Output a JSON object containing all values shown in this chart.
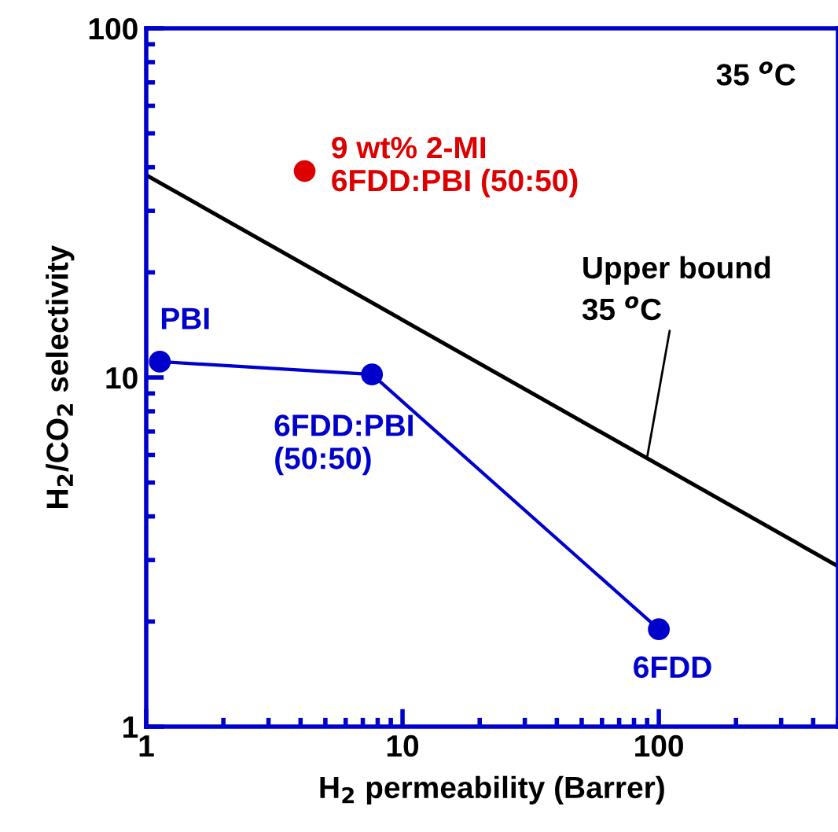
{
  "chart_data": {
    "type": "line",
    "xlabel": "H$_{2}$ permeability (Barrer)",
    "ylabel": "H$_{2}$/CO$_{2}$ selectivity",
    "log": "xy",
    "xlim": [
      1,
      500
    ],
    "ylim": [
      1,
      100
    ],
    "xticks": [
      1,
      10,
      100
    ],
    "yticks": [
      1,
      10,
      100
    ],
    "grid": false,
    "series": [
      {
        "color": "#0000cc",
        "marker": "circle",
        "x": [
          1.13,
          7.6,
          100
        ],
        "values": [
          11.1,
          10.2,
          1.9
        ]
      },
      {
        "type": "scatter",
        "color": "#dd0000",
        "marker": "circle",
        "x": [
          4.15
        ],
        "values": [
          39
        ]
      },
      {
        "color": "#000000",
        "marker": "none",
        "x": [
          1,
          500
        ],
        "values": [
          38,
          2.88
        ]
      }
    ],
    "annotations": [
      "35 $^{o}$C",
      {
        "text": "PBI",
        "x": 1.13,
        "y": 11.1
      },
      {
        "text": "6FDD:PBI\n(50:50)",
        "x": 7.6,
        "y": 10.2
      },
      {
        "text": "6FDD",
        "x": 100,
        "y": 1.9
      },
      {
        "text": "9 wt% 2-MI\n6FDD:PBI (50:50)",
        "x": 4.15,
        "y": 39
      },
      {
        "text": "Upper bound\n35 $^{o}$C",
        "x": 90,
        "y": 5.9
      }
    ]
  }
}
